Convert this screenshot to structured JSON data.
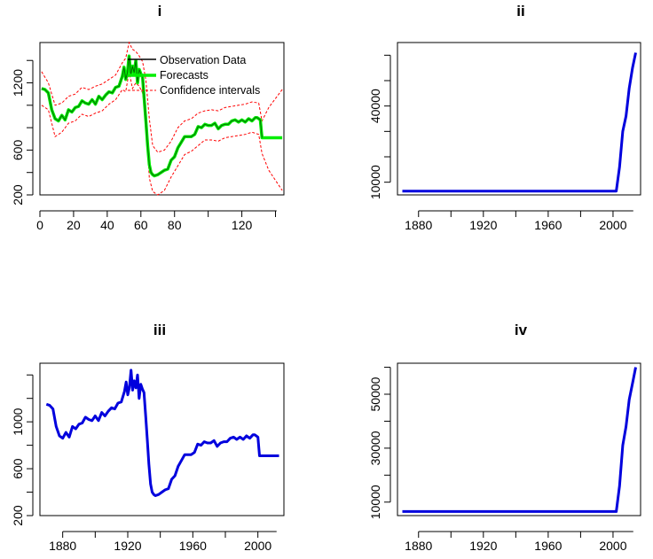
{
  "colors": {
    "observed": "#000000",
    "forecast": "#00ee00",
    "confidence": "#ff0000",
    "series": "#0000dd"
  },
  "chart_data": [
    {
      "type": "line",
      "title": "i",
      "xlim": [
        0,
        145
      ],
      "ylim": [
        200,
        1560
      ],
      "xticks": [
        0,
        20,
        40,
        60,
        80,
        120
      ],
      "yticks": [
        200,
        600,
        1200
      ],
      "legend": {
        "placement": "top-right",
        "entries": [
          "Observation Data",
          "Forecasts",
          "Confidence intervals"
        ]
      },
      "series": [
        {
          "name": "Observation Data",
          "x": [
            1,
            3,
            5,
            7,
            9,
            11,
            13,
            15,
            17,
            19,
            21,
            23,
            25,
            27,
            29,
            31,
            33,
            35,
            37,
            39,
            41,
            43,
            45,
            47,
            49,
            50,
            51,
            52,
            53,
            54,
            55,
            56,
            57,
            58,
            59,
            60,
            61,
            62,
            63,
            64,
            65,
            66,
            67,
            68,
            70,
            72,
            74,
            76,
            78,
            80,
            82,
            84,
            86,
            88,
            90,
            92,
            94,
            96,
            98,
            100,
            102,
            104,
            106,
            108,
            110,
            112,
            114,
            116,
            118,
            120,
            122,
            124,
            126,
            128,
            129,
            130,
            131,
            132
          ],
          "y": [
            1150,
            1140,
            1110,
            960,
            880,
            860,
            910,
            870,
            960,
            940,
            980,
            990,
            1040,
            1020,
            1010,
            1050,
            1010,
            1080,
            1050,
            1090,
            1120,
            1110,
            1160,
            1170,
            1260,
            1340,
            1230,
            1290,
            1440,
            1270,
            1350,
            1290,
            1400,
            1200,
            1320,
            1280,
            1250,
            1050,
            850,
            640,
            470,
            400,
            380,
            370,
            380,
            400,
            420,
            430,
            510,
            540,
            620,
            670,
            720,
            720,
            720,
            740,
            810,
            800,
            830,
            820,
            820,
            840,
            790,
            820,
            830,
            830,
            860,
            870,
            850,
            870,
            850,
            880,
            860,
            890,
            890,
            880,
            870,
            710
          ]
        },
        {
          "name": "Forecasts",
          "x": [
            1,
            3,
            5,
            7,
            9,
            11,
            13,
            15,
            17,
            19,
            21,
            23,
            25,
            27,
            29,
            31,
            33,
            35,
            37,
            39,
            41,
            43,
            45,
            47,
            49,
            50,
            51,
            52,
            53,
            54,
            55,
            56,
            57,
            58,
            59,
            60,
            61,
            62,
            63,
            64,
            65,
            66,
            67,
            68,
            70,
            72,
            74,
            76,
            78,
            80,
            82,
            84,
            86,
            88,
            90,
            92,
            94,
            96,
            98,
            100,
            102,
            104,
            106,
            108,
            110,
            112,
            114,
            116,
            118,
            120,
            122,
            124,
            126,
            128,
            129,
            130,
            131,
            132,
            134,
            136,
            138,
            140,
            142,
            144
          ],
          "y": [
            1150,
            1140,
            1110,
            960,
            880,
            860,
            910,
            870,
            960,
            940,
            980,
            990,
            1040,
            1020,
            1010,
            1050,
            1010,
            1080,
            1050,
            1090,
            1120,
            1110,
            1160,
            1170,
            1260,
            1340,
            1230,
            1290,
            1440,
            1270,
            1350,
            1290,
            1400,
            1200,
            1320,
            1280,
            1250,
            1050,
            850,
            640,
            470,
            400,
            380,
            370,
            380,
            400,
            420,
            430,
            510,
            540,
            620,
            670,
            720,
            720,
            720,
            740,
            810,
            800,
            830,
            820,
            820,
            840,
            790,
            820,
            830,
            830,
            860,
            870,
            850,
            870,
            850,
            880,
            860,
            890,
            890,
            880,
            870,
            710,
            710,
            710,
            710,
            710,
            710,
            710
          ]
        },
        {
          "name": "Confidence intervals upper",
          "x": [
            1,
            5,
            9,
            13,
            17,
            21,
            25,
            29,
            33,
            37,
            41,
            45,
            49,
            51,
            53,
            55,
            57,
            59,
            61,
            63,
            65,
            67,
            70,
            74,
            78,
            82,
            86,
            90,
            94,
            98,
            102,
            106,
            110,
            114,
            118,
            122,
            126,
            130,
            132,
            136,
            140,
            144
          ],
          "y": [
            1300,
            1200,
            1000,
            1020,
            1080,
            1100,
            1160,
            1140,
            1170,
            1190,
            1230,
            1270,
            1380,
            1420,
            1560,
            1500,
            1480,
            1440,
            1390,
            1220,
            880,
            640,
            580,
            600,
            680,
            800,
            860,
            880,
            930,
            950,
            960,
            950,
            980,
            990,
            1000,
            1010,
            1030,
            1020,
            860,
            980,
            1060,
            1140
          ]
        },
        {
          "name": "Confidence intervals lower",
          "x": [
            1,
            5,
            9,
            13,
            17,
            21,
            25,
            29,
            33,
            37,
            41,
            45,
            49,
            51,
            53,
            55,
            57,
            59,
            61,
            63,
            65,
            67,
            70,
            74,
            78,
            82,
            86,
            90,
            94,
            98,
            102,
            106,
            110,
            114,
            118,
            122,
            126,
            130,
            132,
            136,
            140,
            144
          ],
          "y": [
            1000,
            960,
            720,
            760,
            840,
            860,
            920,
            900,
            930,
            950,
            1010,
            1050,
            1140,
            1120,
            1300,
            1150,
            1200,
            1170,
            1110,
            880,
            350,
            230,
            200,
            240,
            360,
            460,
            560,
            590,
            640,
            690,
            690,
            680,
            710,
            720,
            730,
            740,
            760,
            740,
            570,
            420,
            330,
            240
          ]
        }
      ]
    },
    {
      "type": "line",
      "title": "ii",
      "xlim": [
        1867,
        2017
      ],
      "ylim": [
        5000,
        65000
      ],
      "xticks": [
        1880,
        1920,
        1960,
        2000
      ],
      "yticks": [
        10000,
        40000
      ],
      "series": [
        {
          "x": [
            1870,
            1900,
            1950,
            2002,
            2004,
            2006,
            2008,
            2010,
            2012,
            2014
          ],
          "y": [
            6500,
            6500,
            6500,
            6500,
            16000,
            30000,
            36000,
            47000,
            55000,
            61000
          ]
        }
      ]
    },
    {
      "type": "line",
      "title": "iii",
      "xlim": [
        1866,
        2016
      ],
      "ylim": [
        200,
        1500
      ],
      "xticks": [
        1880,
        1920,
        1960,
        2000
      ],
      "yticks": [
        200,
        600,
        1000
      ],
      "series": [
        {
          "x": [
            1870,
            1872,
            1874,
            1876,
            1878,
            1880,
            1882,
            1884,
            1886,
            1888,
            1890,
            1892,
            1894,
            1896,
            1898,
            1900,
            1902,
            1904,
            1906,
            1908,
            1910,
            1912,
            1914,
            1916,
            1918,
            1919,
            1920,
            1921,
            1922,
            1923,
            1924,
            1925,
            1926,
            1927,
            1928,
            1929,
            1930,
            1931,
            1932,
            1933,
            1934,
            1935,
            1936,
            1937,
            1939,
            1941,
            1943,
            1945,
            1947,
            1949,
            1951,
            1953,
            1955,
            1957,
            1959,
            1961,
            1963,
            1965,
            1967,
            1969,
            1971,
            1973,
            1975,
            1977,
            1979,
            1981,
            1983,
            1985,
            1987,
            1989,
            1991,
            1993,
            1995,
            1997,
            1998,
            1999,
            2000,
            2001,
            2003,
            2005,
            2007,
            2009,
            2011,
            2013
          ],
          "y": [
            1150,
            1140,
            1110,
            960,
            880,
            860,
            910,
            870,
            960,
            940,
            980,
            990,
            1040,
            1020,
            1010,
            1050,
            1010,
            1080,
            1050,
            1090,
            1120,
            1110,
            1160,
            1170,
            1260,
            1340,
            1230,
            1290,
            1440,
            1270,
            1350,
            1290,
            1400,
            1200,
            1320,
            1280,
            1250,
            1050,
            850,
            640,
            470,
            400,
            380,
            370,
            380,
            400,
            420,
            430,
            510,
            540,
            620,
            670,
            720,
            720,
            720,
            740,
            810,
            800,
            830,
            820,
            820,
            840,
            790,
            820,
            830,
            830,
            860,
            870,
            850,
            870,
            850,
            880,
            860,
            890,
            890,
            880,
            870,
            710,
            710,
            710,
            710,
            710,
            710,
            710
          ]
        }
      ]
    },
    {
      "type": "line",
      "title": "iv",
      "xlim": [
        1867,
        2017
      ],
      "ylim": [
        5000,
        61500
      ],
      "xticks": [
        1880,
        1920,
        1960,
        2000
      ],
      "yticks": [
        10000,
        30000,
        50000
      ],
      "series": [
        {
          "x": [
            1870,
            1900,
            1950,
            2002,
            2004,
            2006,
            2008,
            2010,
            2012,
            2014
          ],
          "y": [
            6500,
            6500,
            6500,
            6500,
            16000,
            31000,
            38000,
            48000,
            54000,
            60000
          ]
        }
      ]
    }
  ]
}
